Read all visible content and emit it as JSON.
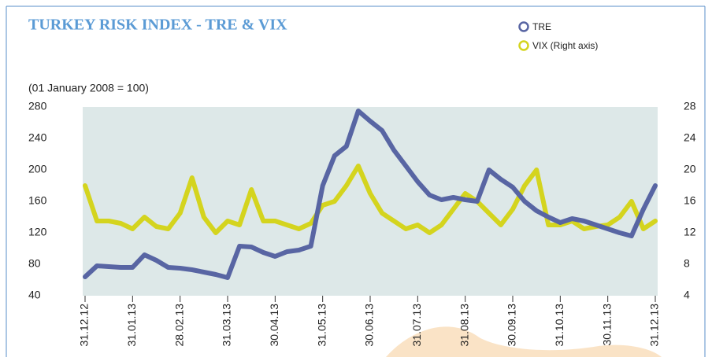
{
  "chart_data": {
    "type": "line",
    "title": "TURKEY RISK INDEX - TRE & VIX",
    "subtitle": "(01 January 2008 = 100)",
    "categories": [
      "31.12.12",
      null,
      null,
      null,
      "31.01.13",
      null,
      null,
      null,
      "28.02.13",
      null,
      null,
      null,
      "31.03.13",
      null,
      null,
      null,
      "30.04.13",
      null,
      null,
      null,
      "31.05.13",
      null,
      null,
      null,
      "30.06.13",
      null,
      null,
      null,
      "31.07.13",
      null,
      null,
      null,
      "31.08.13",
      null,
      null,
      null,
      "30.09.13",
      null,
      null,
      null,
      "31.10.13",
      null,
      null,
      null,
      "30.11.13",
      null,
      null,
      null,
      "31.12.13"
    ],
    "series": [
      {
        "name": "TRE",
        "color": "#5865a3",
        "values": [
          64,
          78,
          77,
          76,
          76,
          92,
          85,
          76,
          75,
          73,
          70,
          67,
          63,
          103,
          102,
          95,
          90,
          96,
          98,
          103,
          180,
          218,
          230,
          275,
          262,
          250,
          225,
          205,
          185,
          168,
          162,
          165,
          162,
          160,
          200,
          188,
          178,
          160,
          148,
          140,
          133,
          138,
          135,
          130,
          125,
          120,
          116,
          150,
          180
        ]
      },
      {
        "name": "VIX (Right axis)",
        "color": "#d4d41e",
        "axis": "y2",
        "values": [
          18,
          13.5,
          13.5,
          13.2,
          12.5,
          14,
          12.8,
          12.5,
          14.5,
          19,
          14,
          12,
          13.5,
          13,
          17.5,
          13.5,
          13.5,
          13,
          12.5,
          13.2,
          15.5,
          16,
          18,
          20.5,
          17,
          14.5,
          13.5,
          12.5,
          13,
          12,
          13,
          15,
          17,
          16,
          14.5,
          13,
          15,
          18,
          20,
          13,
          13,
          13.5,
          12.5,
          12.8,
          13,
          14,
          16,
          12.5,
          13.5
        ]
      }
    ],
    "ylim": [
      40,
      280
    ],
    "yticks": [
      40,
      80,
      120,
      160,
      200,
      240,
      280
    ],
    "y2lim": [
      4,
      28
    ],
    "y2ticks": [
      4,
      8,
      12,
      16,
      20,
      24,
      28
    ],
    "grid": false
  }
}
